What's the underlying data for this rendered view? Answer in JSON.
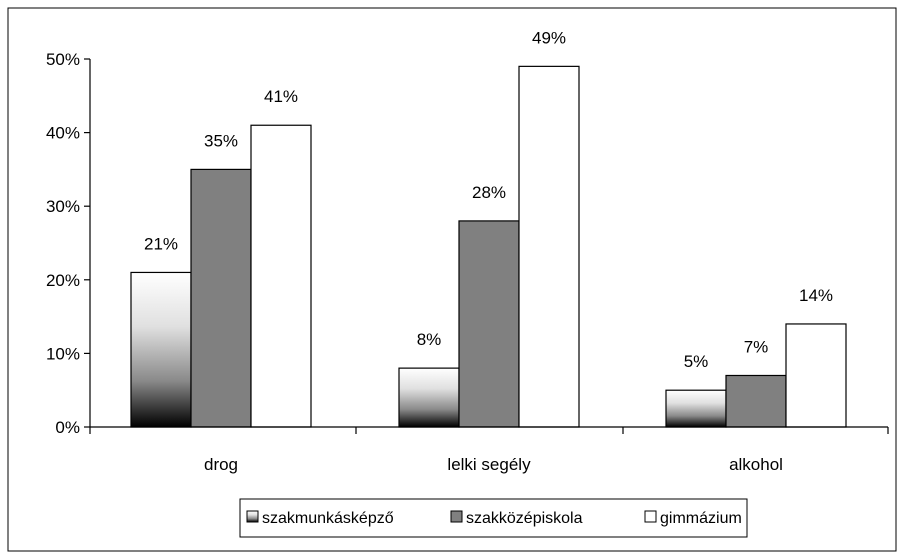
{
  "chart_data": {
    "type": "bar",
    "categories": [
      "drog",
      "lelki segély",
      "alkohol"
    ],
    "series": [
      {
        "name": "szakmunkásképző",
        "values": [
          21,
          8,
          5
        ],
        "fill": "gradient-dark"
      },
      {
        "name": "szakközépiskola",
        "values": [
          35,
          28,
          7
        ],
        "fill": "#808080"
      },
      {
        "name": "gimmázium",
        "values": [
          41,
          49,
          14
        ],
        "fill": "#ffffff"
      }
    ],
    "data_labels": [
      [
        "21%",
        "8%",
        "5%"
      ],
      [
        "35%",
        "28%",
        "7%"
      ],
      [
        "41%",
        "49%",
        "14%"
      ]
    ],
    "y_ticks": [
      "0%",
      "10%",
      "20%",
      "30%",
      "40%",
      "50%"
    ],
    "ylim": [
      0,
      50
    ],
    "grid": false,
    "legend_position": "bottom",
    "title": "",
    "xlabel": "",
    "ylabel": ""
  }
}
